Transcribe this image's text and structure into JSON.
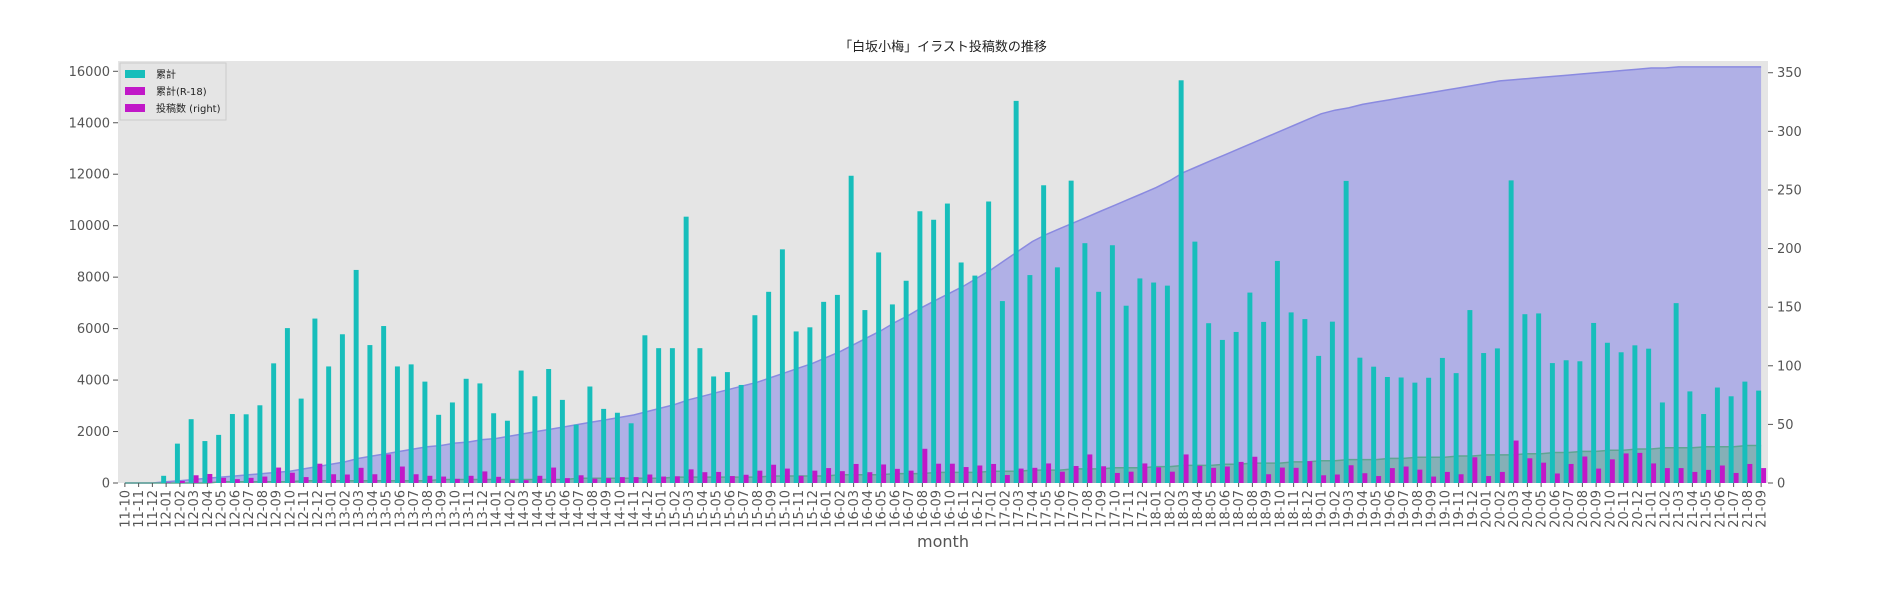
{
  "chart_data": {
    "type": "bar",
    "title": "「白坂小梅」イラスト投稿数の推移",
    "xlabel": "month",
    "ylabel": "",
    "ylim": [
      0,
      16400
    ],
    "y2lim": [
      0,
      360
    ],
    "y_ticks": [
      0,
      2000,
      4000,
      6000,
      8000,
      10000,
      12000,
      14000,
      16000
    ],
    "y2_ticks": [
      0,
      50,
      100,
      150,
      200,
      250,
      300,
      350
    ],
    "grid": false,
    "legend_placement": "top-left",
    "categories": [
      "11-10",
      "11-11",
      "11-12",
      "12-01",
      "12-02",
      "12-03",
      "12-04",
      "12-05",
      "12-06",
      "12-07",
      "12-08",
      "12-09",
      "12-10",
      "12-11",
      "12-12",
      "13-01",
      "13-02",
      "13-03",
      "13-04",
      "13-05",
      "13-06",
      "13-07",
      "13-08",
      "13-09",
      "13-10",
      "13-11",
      "13-12",
      "14-01",
      "14-02",
      "14-03",
      "14-04",
      "14-05",
      "14-06",
      "14-07",
      "14-08",
      "14-09",
      "14-10",
      "14-11",
      "14-12",
      "15-01",
      "15-02",
      "15-03",
      "15-04",
      "15-05",
      "15-06",
      "15-07",
      "15-08",
      "15-09",
      "15-10",
      "15-11",
      "15-12",
      "16-01",
      "16-02",
      "16-03",
      "16-04",
      "16-05",
      "16-06",
      "16-07",
      "16-08",
      "16-09",
      "16-10",
      "16-11",
      "16-12",
      "17-01",
      "17-02",
      "17-03",
      "17-04",
      "17-05",
      "17-06",
      "17-07",
      "17-08",
      "17-09",
      "17-10",
      "17-11",
      "17-12",
      "18-01",
      "18-02",
      "18-03",
      "18-04",
      "18-05",
      "18-06",
      "18-07",
      "18-08",
      "18-09",
      "18-10",
      "18-11",
      "18-12",
      "19-01",
      "19-02",
      "19-03",
      "19-04",
      "19-05",
      "19-06",
      "19-07",
      "19-08",
      "19-09",
      "19-10",
      "19-11",
      "19-12",
      "20-01",
      "20-02",
      "20-03",
      "20-04",
      "20-05",
      "20-06",
      "20-07",
      "20-08",
      "20-09",
      "20-10",
      "20-11",
      "20-12",
      "21-01",
      "21-02",
      "21-03",
      "21-04",
      "21-05",
      "21-06",
      "21-07",
      "21-08",
      "21-09"
    ],
    "series": [
      {
        "name": "累計",
        "axis": "left",
        "kind": "bar",
        "color": "#17bebb",
        "values": [
          0,
          0,
          0,
          280,
          1530,
          2480,
          1630,
          1870,
          2680,
          2670,
          3020,
          4650,
          6020,
          3280,
          6390,
          4530,
          5780,
          8280,
          5360,
          6100,
          4530,
          4610,
          3940,
          2650,
          3130,
          4050,
          3870,
          2710,
          2420,
          4370,
          3370,
          4430,
          3230,
          2270,
          3750,
          2880,
          2730,
          2320,
          5740,
          5240,
          5240,
          10350,
          5240,
          4140,
          4310,
          3810,
          6520,
          7430,
          9080,
          5890,
          6050,
          7040,
          7310,
          11940,
          6720,
          8960,
          6940,
          7860,
          10560,
          10230,
          10860,
          8570,
          8060,
          10940,
          7070,
          14850,
          8080,
          11570,
          8380,
          11750,
          9320,
          7430,
          9240,
          6890,
          7950,
          7790,
          7670,
          15650,
          9380,
          6210,
          5560,
          5870,
          7400,
          6260,
          8630,
          6630,
          6370,
          4940,
          6270,
          11740,
          4870,
          4520,
          4120,
          4100,
          3900,
          4090,
          4860,
          4270,
          6720,
          5050,
          5230,
          11760,
          6560,
          6590,
          4660,
          4770,
          4730,
          6220,
          5450,
          5080,
          5350,
          5220,
          3130,
          6990,
          3560,
          2680,
          3710,
          3370,
          3940,
          3590
        ]
      },
      {
        "name": "累計(R-18)",
        "axis": "left",
        "kind": "bar",
        "color": "#c118c8",
        "values": [
          0,
          0,
          0,
          20,
          80,
          300,
          350,
          200,
          150,
          200,
          250,
          600,
          400,
          230,
          750,
          340,
          330,
          590,
          340,
          1110,
          640,
          340,
          280,
          250,
          160,
          280,
          450,
          240,
          110,
          110,
          280,
          600,
          190,
          300,
          170,
          190,
          230,
          230,
          330,
          250,
          260,
          530,
          420,
          430,
          270,
          320,
          480,
          710,
          560,
          280,
          480,
          580,
          460,
          740,
          420,
          720,
          550,
          480,
          1330,
          750,
          750,
          620,
          680,
          740,
          310,
          560,
          590,
          760,
          440,
          660,
          1110,
          650,
          390,
          440,
          760,
          610,
          440,
          1110,
          670,
          590,
          640,
          820,
          1020,
          340,
          600,
          590,
          850,
          300,
          330,
          690,
          380,
          270,
          580,
          640,
          520,
          250,
          430,
          340,
          1000,
          270,
          430,
          1650,
          960,
          790,
          370,
          740,
          1030,
          560,
          920,
          1150,
          1170,
          760,
          580,
          580,
          430,
          510,
          680,
          390,
          740,
          580
        ]
      },
      {
        "name": "累計",
        "axis": "right",
        "kind": "area",
        "color": "#9d9de6",
        "stroke": "#8a8ae0",
        "values": [
          0,
          0,
          0,
          1,
          2,
          3,
          4,
          5,
          6,
          7,
          8,
          9,
          10,
          12,
          14,
          16,
          18,
          21,
          23,
          25,
          27,
          29,
          31,
          32,
          34,
          35,
          37,
          38,
          40,
          42,
          44,
          46,
          48,
          50,
          52,
          54,
          56,
          58,
          61,
          64,
          67,
          71,
          74,
          77,
          80,
          83,
          86,
          90,
          94,
          98,
          102,
          107,
          112,
          118,
          124,
          130,
          137,
          143,
          150,
          156,
          162,
          168,
          175,
          182,
          190,
          198,
          206,
          212,
          217,
          222,
          227,
          232,
          237,
          242,
          247,
          252,
          258,
          265,
          270,
          275,
          280,
          285,
          290,
          295,
          300,
          305,
          310,
          315,
          318,
          320,
          323,
          325,
          327,
          329,
          331,
          333,
          335,
          337,
          339,
          341,
          343,
          344,
          345,
          346,
          347,
          348,
          349,
          350,
          351,
          352,
          353,
          354,
          354,
          355,
          355,
          355,
          355,
          355,
          355,
          355
        ]
      },
      {
        "name": "累計(R-18)",
        "axis": "right",
        "kind": "area",
        "color": "#74b0a2",
        "stroke": "#5fa592",
        "values": [
          0,
          0,
          0,
          0,
          0,
          0,
          0,
          1,
          1,
          1,
          1,
          1,
          1,
          2,
          2,
          2,
          2,
          2,
          2,
          2,
          2,
          2,
          2,
          3,
          3,
          3,
          3,
          3,
          3,
          3,
          3,
          3,
          3,
          4,
          4,
          4,
          4,
          4,
          4,
          4,
          5,
          5,
          5,
          5,
          5,
          5,
          5,
          6,
          6,
          6,
          6,
          6,
          7,
          7,
          7,
          7,
          8,
          8,
          8,
          9,
          9,
          9,
          9,
          10,
          10,
          10,
          11,
          11,
          11,
          12,
          12,
          12,
          13,
          13,
          13,
          14,
          14,
          15,
          15,
          15,
          16,
          16,
          17,
          17,
          17,
          18,
          18,
          19,
          19,
          20,
          20,
          20,
          21,
          21,
          22,
          22,
          22,
          23,
          23,
          24,
          24,
          24,
          25,
          25,
          26,
          26,
          27,
          27,
          28,
          28,
          29,
          29,
          30,
          30,
          30,
          31,
          31,
          31,
          32,
          32
        ]
      }
    ],
    "legend": [
      {
        "label": "累計",
        "color": "#17bebb"
      },
      {
        "label": "累計(R-18)",
        "color": "#c118c8"
      },
      {
        "label": "投稿数 (right)",
        "color": "#c118c8"
      }
    ]
  }
}
